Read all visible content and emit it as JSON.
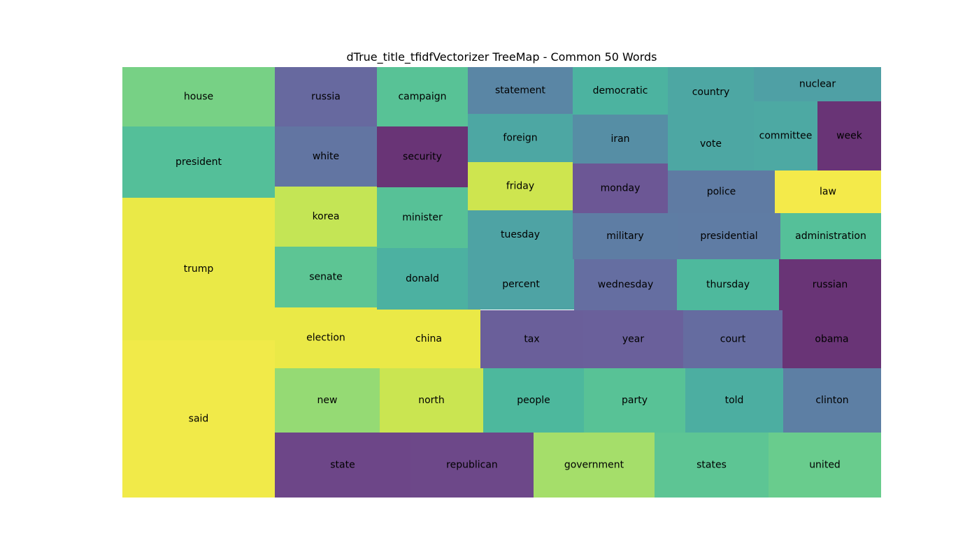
{
  "chart_data": {
    "type": "treemap",
    "title": "dTrue_title_tfidfVectorizer TreeMap - Common 50 Words",
    "colormap": "viridis",
    "alpha": 0.8,
    "items": [
      {
        "label": "house",
        "color": "#55c667",
        "rank_group": "col1"
      },
      {
        "label": "president",
        "color": "#29af7f",
        "rank_group": "col1"
      },
      {
        "label": "trump",
        "color": "#e5e419",
        "rank_group": "col1"
      },
      {
        "label": "said",
        "color": "#eee51b",
        "rank_group": "col1"
      },
      {
        "label": "russia",
        "color": "#414487",
        "rank_group": "col2"
      },
      {
        "label": "campaign",
        "color": "#2eb37c",
        "rank_group": "col2"
      },
      {
        "label": "white",
        "color": "#3b528b",
        "rank_group": "col2"
      },
      {
        "label": "security",
        "color": "#440154",
        "rank_group": "col2"
      },
      {
        "label": "korea",
        "color": "#b5de2b",
        "rank_group": "col2"
      },
      {
        "label": "minister",
        "color": "#2db27d",
        "rank_group": "col2"
      },
      {
        "label": "senate",
        "color": "#35b779",
        "rank_group": "col2"
      },
      {
        "label": "donald",
        "color": "#1f9e89",
        "rank_group": "col2"
      },
      {
        "label": "election",
        "color": "#e5e419",
        "rank_group": "col2"
      },
      {
        "label": "china",
        "color": "#e5e419",
        "rank_group": "col2"
      },
      {
        "label": "statement",
        "color": "#31688e",
        "rank_group": "col3"
      },
      {
        "label": "democratic",
        "color": "#1fa088",
        "rank_group": "col3"
      },
      {
        "label": "country",
        "color": "#21918c",
        "rank_group": "col3"
      },
      {
        "label": "nuclear",
        "color": "#23888e",
        "rank_group": "col3"
      },
      {
        "label": "foreign",
        "color": "#21918c",
        "rank_group": "col3"
      },
      {
        "label": "iran",
        "color": "#2c728e",
        "rank_group": "col3"
      },
      {
        "label": "vote",
        "color": "#21918c",
        "rank_group": "col3"
      },
      {
        "label": "committee",
        "color": "#20938c",
        "rank_group": "col3"
      },
      {
        "label": "week",
        "color": "#440154",
        "rank_group": "col3"
      },
      {
        "label": "friday",
        "color": "#c2df23",
        "rank_group": "col3"
      },
      {
        "label": "monday",
        "color": "#472d7b",
        "rank_group": "col3"
      },
      {
        "label": "police",
        "color": "#375a8c",
        "rank_group": "col3"
      },
      {
        "label": "law",
        "color": "#f1e51d",
        "rank_group": "col3"
      },
      {
        "label": "tuesday",
        "color": "#228c8d",
        "rank_group": "col3"
      },
      {
        "label": "military",
        "color": "#365d8d",
        "rank_group": "col3"
      },
      {
        "label": "presidential",
        "color": "#375b8d",
        "rank_group": "col3"
      },
      {
        "label": "administration",
        "color": "#2ab07f",
        "rank_group": "col3"
      },
      {
        "label": "percent",
        "color": "#228c8d",
        "rank_group": "col3"
      },
      {
        "label": "wednesday",
        "color": "#3e4a89",
        "rank_group": "col3"
      },
      {
        "label": "thursday",
        "color": "#22a785",
        "rank_group": "col3"
      },
      {
        "label": "russian",
        "color": "#440154",
        "rank_group": "col3"
      },
      {
        "label": "tax",
        "color": "#453781",
        "rank_group": "col3"
      },
      {
        "label": "year",
        "color": "#453882",
        "rank_group": "col3"
      },
      {
        "label": "court",
        "color": "#3f4788",
        "rank_group": "col3"
      },
      {
        "label": "obama",
        "color": "#440154",
        "rank_group": "col3"
      },
      {
        "label": "new",
        "color": "#7ad151",
        "rank_group": "col3"
      },
      {
        "label": "north",
        "color": "#bddf26",
        "rank_group": "col3"
      },
      {
        "label": "people",
        "color": "#21a685",
        "rank_group": "col3"
      },
      {
        "label": "party",
        "color": "#2eb37c",
        "rank_group": "col3"
      },
      {
        "label": "told",
        "color": "#1f9a8a",
        "rank_group": "col3"
      },
      {
        "label": "clinton",
        "color": "#355f8d",
        "rank_group": "col3"
      },
      {
        "label": "state",
        "color": "#48186a",
        "rank_group": "col3"
      },
      {
        "label": "republican",
        "color": "#481a6c",
        "rank_group": "col3"
      },
      {
        "label": "government",
        "color": "#8ed645",
        "rank_group": "col3"
      },
      {
        "label": "states",
        "color": "#35b779",
        "rank_group": "col3"
      },
      {
        "label": "united",
        "color": "#44bf70",
        "rank_group": "col3"
      }
    ]
  }
}
